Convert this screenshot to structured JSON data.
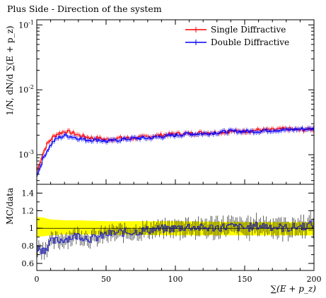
{
  "title": "Plus Side - Direction of the system",
  "chart_data": {
    "type": "line",
    "title": "Plus Side - Direction of the system",
    "xlabel": "∑(E + p_z)",
    "ylabel": "1/N, dN/d ∑(E + p_z)",
    "ratio_ylabel": "MC/data",
    "xlim": [
      0,
      200
    ],
    "ylim": [
      0.00035,
      0.12
    ],
    "yscale": "log",
    "ratio_ylim": [
      0.52,
      1.5
    ],
    "x_ticks": [
      "0",
      "50",
      "100",
      "150",
      "200"
    ],
    "y_ticks": [
      "10^{-3}",
      "10^{-2}",
      "10^{-1}"
    ],
    "ratio_ticks": [
      "0.6",
      "0.8",
      "1",
      "1.2",
      "1.4"
    ],
    "legend_position": "top-right",
    "band_color": "#ffff00",
    "series": [
      {
        "name": "Single Diffractive",
        "color": "#ff0000",
        "x": [
          1,
          3,
          5,
          7,
          9,
          12,
          15,
          18,
          21,
          25,
          30,
          35,
          40,
          45,
          50,
          60,
          70,
          80,
          90,
          100,
          110,
          120,
          130,
          140,
          150,
          160,
          170,
          180,
          190,
          199
        ],
        "y": [
          0.0006,
          0.00085,
          0.0011,
          0.0014,
          0.0016,
          0.0019,
          0.0021,
          0.0022,
          0.0023,
          0.0022,
          0.002,
          0.0019,
          0.0018,
          0.0018,
          0.0017,
          0.0018,
          0.0018,
          0.0019,
          0.002,
          0.0021,
          0.0021,
          0.0022,
          0.0022,
          0.0023,
          0.0023,
          0.0024,
          0.0024,
          0.0025,
          0.0024,
          0.0025
        ]
      },
      {
        "name": "Double Diffractive",
        "color": "#0000ff",
        "x": [
          1,
          3,
          5,
          7,
          9,
          12,
          15,
          18,
          21,
          25,
          30,
          35,
          40,
          45,
          50,
          60,
          70,
          80,
          90,
          100,
          110,
          120,
          130,
          140,
          150,
          160,
          170,
          180,
          190,
          199
        ],
        "y": [
          0.00052,
          0.0007,
          0.0009,
          0.0011,
          0.0013,
          0.0016,
          0.0018,
          0.0019,
          0.002,
          0.0019,
          0.0018,
          0.0017,
          0.0017,
          0.0017,
          0.0016,
          0.0017,
          0.0018,
          0.0018,
          0.0019,
          0.002,
          0.0021,
          0.0021,
          0.0022,
          0.0023,
          0.0023,
          0.0023,
          0.0024,
          0.0024,
          0.0025,
          0.0025
        ]
      }
    ],
    "ratio_series": [
      {
        "name": "Single Diffractive",
        "color": "#ff0000",
        "x": [],
        "y": []
      },
      {
        "name": "Double Diffractive",
        "color": "#0000ff",
        "x": [
          1,
          5,
          10,
          15,
          20,
          25,
          30,
          35,
          40,
          45,
          50,
          60,
          70,
          80,
          90,
          100,
          110,
          120,
          130,
          140,
          150,
          160,
          170,
          180,
          190,
          199
        ],
        "y": [
          0.78,
          0.75,
          0.84,
          0.86,
          0.88,
          0.9,
          0.92,
          0.9,
          0.88,
          0.9,
          0.93,
          0.95,
          0.96,
          0.98,
          0.99,
          1.0,
          1.02,
          1.0,
          1.01,
          1.02,
          1.0,
          1.03,
          1.02,
          1.0,
          1.02,
          1.04
        ]
      }
    ],
    "band": {
      "x": [
        0,
        5,
        10,
        20,
        30,
        50,
        100,
        150,
        200
      ],
      "low": [
        0.9,
        0.91,
        0.92,
        0.93,
        0.93,
        0.93,
        0.92,
        0.92,
        0.92
      ],
      "high": [
        1.13,
        1.12,
        1.1,
        1.09,
        1.09,
        1.08,
        1.08,
        1.07,
        1.07
      ]
    }
  }
}
